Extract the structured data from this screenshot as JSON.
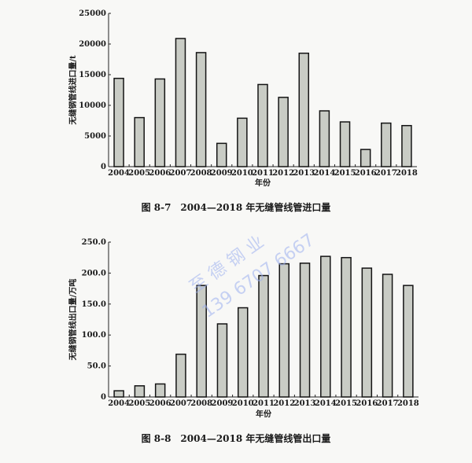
{
  "chart_data": [
    {
      "type": "bar",
      "title": "图 8-7　2004—2018 年无缝管线管进口量",
      "xlabel": "年份",
      "ylabel": "无缝钢管线进口量/t",
      "categories": [
        "2004",
        "2005",
        "2006",
        "2007",
        "2008",
        "2009",
        "2010",
        "2011",
        "2012",
        "2013",
        "2014",
        "2015",
        "2016",
        "2017",
        "2018"
      ],
      "values": [
        14400,
        8000,
        14300,
        20900,
        18600,
        3800,
        7900,
        13400,
        11300,
        18500,
        9100,
        7300,
        2800,
        7100,
        6700
      ],
      "ylim": [
        0,
        25000
      ],
      "yticks": [
        "0",
        "5000",
        "10000",
        "15000",
        "20000",
        "25000"
      ],
      "grid": false
    },
    {
      "type": "bar",
      "title": "图 8-8　2004—2018 年无缝管线管出口量",
      "xlabel": "年份",
      "ylabel": "无缝钢管线出口量/万吨",
      "categories": [
        "2004",
        "2005",
        "2006",
        "2007",
        "2008",
        "2009",
        "2010",
        "2011",
        "2012",
        "2013",
        "2014",
        "2015",
        "2016",
        "2017",
        "2018"
      ],
      "values": [
        10,
        18,
        21,
        69,
        180,
        118,
        144,
        196,
        215,
        216,
        227,
        225,
        208,
        198,
        180
      ],
      "ylim": [
        0,
        250
      ],
      "yticks": [
        "0",
        "50.0",
        "100.0",
        "150.0",
        "200.0",
        "250.0"
      ],
      "grid": false
    }
  ],
  "watermark": {
    "line1": "至 德 钢 业",
    "line2": "139 6707 6667"
  },
  "colors": {
    "bar_fill": "#c9ccc5",
    "bar_stroke": "#141414",
    "background": "#f8f8f6"
  }
}
